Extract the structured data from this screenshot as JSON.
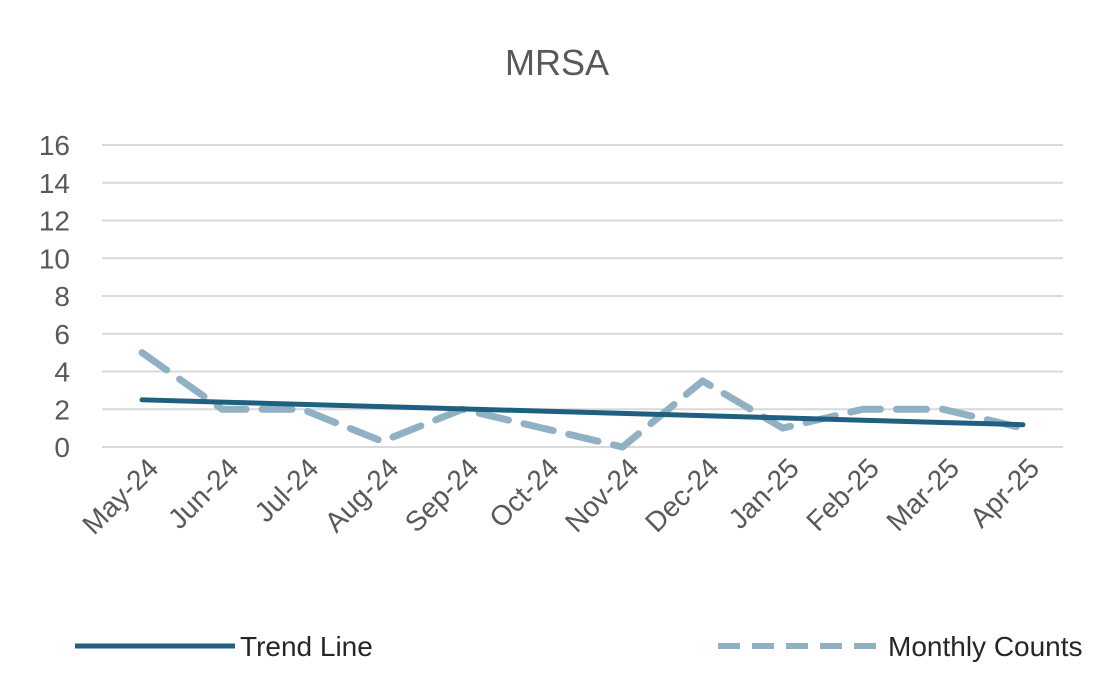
{
  "chart_data": {
    "type": "line",
    "title": "MRSA",
    "categories": [
      "May-24",
      "Jun-24",
      "Jul-24",
      "Aug-24",
      "Sep-24",
      "Oct-24",
      "Nov-24",
      "Dec-24",
      "Jan-25",
      "Feb-25",
      "Mar-25",
      "Apr-25"
    ],
    "series": [
      {
        "name": "Trend Line",
        "values": [
          2.5,
          2.38,
          2.26,
          2.14,
          2.02,
          1.9,
          1.78,
          1.66,
          1.54,
          1.42,
          1.3,
          1.18
        ],
        "color": "#1f5f7f",
        "style": "solid"
      },
      {
        "name": "Monthly Counts",
        "values": [
          5,
          2,
          2,
          0.3,
          2,
          1,
          0,
          3.5,
          1,
          2,
          2,
          1
        ],
        "color": "#8fb1c3",
        "style": "dashed"
      }
    ],
    "yticks": [
      0,
      2,
      4,
      6,
      8,
      10,
      12,
      14,
      16
    ],
    "ylim": [
      0,
      16
    ],
    "grid": true,
    "legend": "bottom"
  }
}
